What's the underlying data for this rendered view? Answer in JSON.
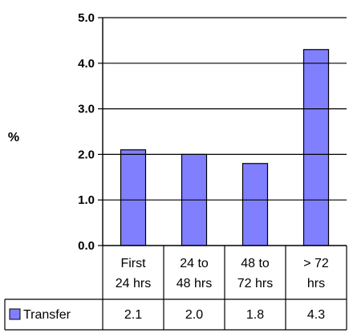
{
  "chart_data": {
    "type": "bar",
    "ylabel": "%",
    "ylim": [
      0,
      5
    ],
    "yticks": [
      "0.0",
      "1.0",
      "2.0",
      "3.0",
      "4.0",
      "5.0"
    ],
    "categories": [
      [
        "First",
        "24 hrs"
      ],
      [
        "24 to",
        "48 hrs"
      ],
      [
        "48 to",
        "72 hrs"
      ],
      [
        "> 72",
        "hrs"
      ]
    ],
    "series": [
      {
        "name": "Transfer",
        "values": [
          2.1,
          2.0,
          1.8,
          4.3
        ],
        "labels": [
          "2.1",
          "2.0",
          "1.8",
          "4.3"
        ],
        "color": "#8080ff"
      }
    ],
    "data_table": true,
    "grid": false
  }
}
